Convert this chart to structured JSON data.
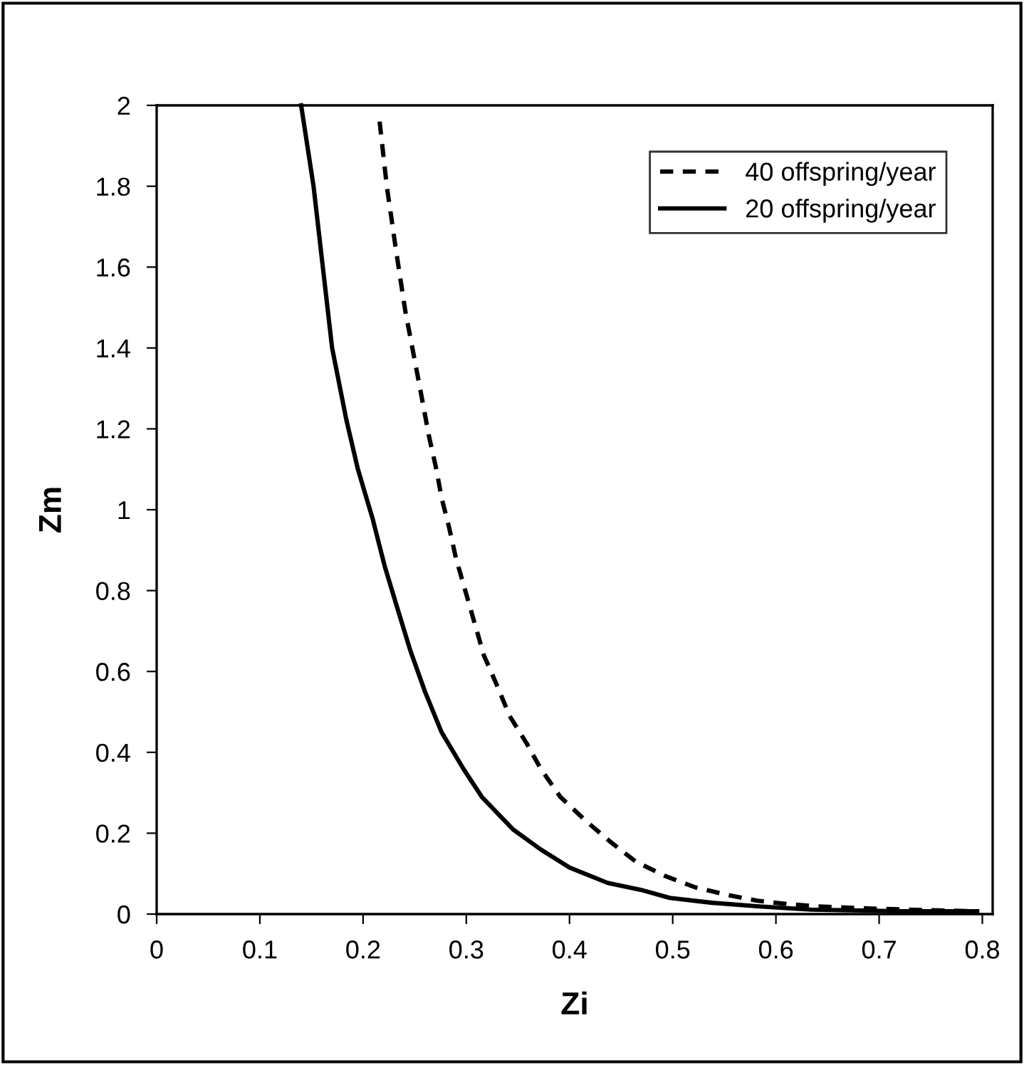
{
  "chart_data": {
    "type": "line",
    "xlabel": "Zi",
    "ylabel": "Zm",
    "xlim": [
      0,
      0.81
    ],
    "xticks": [
      0,
      0.1,
      0.2,
      0.3,
      0.4,
      0.5,
      0.6,
      0.7,
      0.8
    ],
    "ylim": [
      0,
      2
    ],
    "yticks": [
      0,
      0.2,
      0.4,
      0.6,
      0.8,
      1,
      1.2,
      1.4,
      1.6,
      1.8,
      2
    ],
    "grid": false,
    "legend": "top right",
    "marker": "none",
    "series": [
      {
        "name": "40 offspring/year",
        "color": "#000000",
        "line_style": "dashed",
        "x": [
          0.216,
          0.223,
          0.232,
          0.241,
          0.253,
          0.264,
          0.271,
          0.276,
          0.283,
          0.29,
          0.299,
          0.308,
          0.317,
          0.329,
          0.342,
          0.359,
          0.372,
          0.391,
          0.416,
          0.439,
          0.464,
          0.492,
          0.522,
          0.552,
          0.582,
          0.611,
          0.641,
          0.699,
          0.791
        ],
        "values": [
          1.96,
          1.8,
          1.64,
          1.49,
          1.33,
          1.18,
          1.1,
          1.03,
          0.96,
          0.88,
          0.8,
          0.72,
          0.64,
          0.57,
          0.49,
          0.42,
          0.36,
          0.29,
          0.23,
          0.18,
          0.13,
          0.095,
          0.066,
          0.048,
          0.033,
          0.025,
          0.019,
          0.013,
          0.007
        ]
      },
      {
        "name": "20 offspring/year",
        "color": "#000000",
        "line_style": "solid",
        "x": [
          0.14,
          0.152,
          0.161,
          0.17,
          0.184,
          0.195,
          0.202,
          0.209,
          0.221,
          0.234,
          0.246,
          0.26,
          0.276,
          0.297,
          0.315,
          0.345,
          0.372,
          0.4,
          0.437,
          0.469,
          0.497,
          0.538,
          0.584,
          0.634,
          0.722,
          0.795
        ],
        "values": [
          2.0,
          1.8,
          1.6,
          1.4,
          1.22,
          1.1,
          1.04,
          0.98,
          0.86,
          0.75,
          0.65,
          0.55,
          0.45,
          0.36,
          0.29,
          0.21,
          0.16,
          0.115,
          0.077,
          0.06,
          0.04,
          0.028,
          0.019,
          0.011,
          0.007,
          0.007
        ]
      }
    ]
  }
}
